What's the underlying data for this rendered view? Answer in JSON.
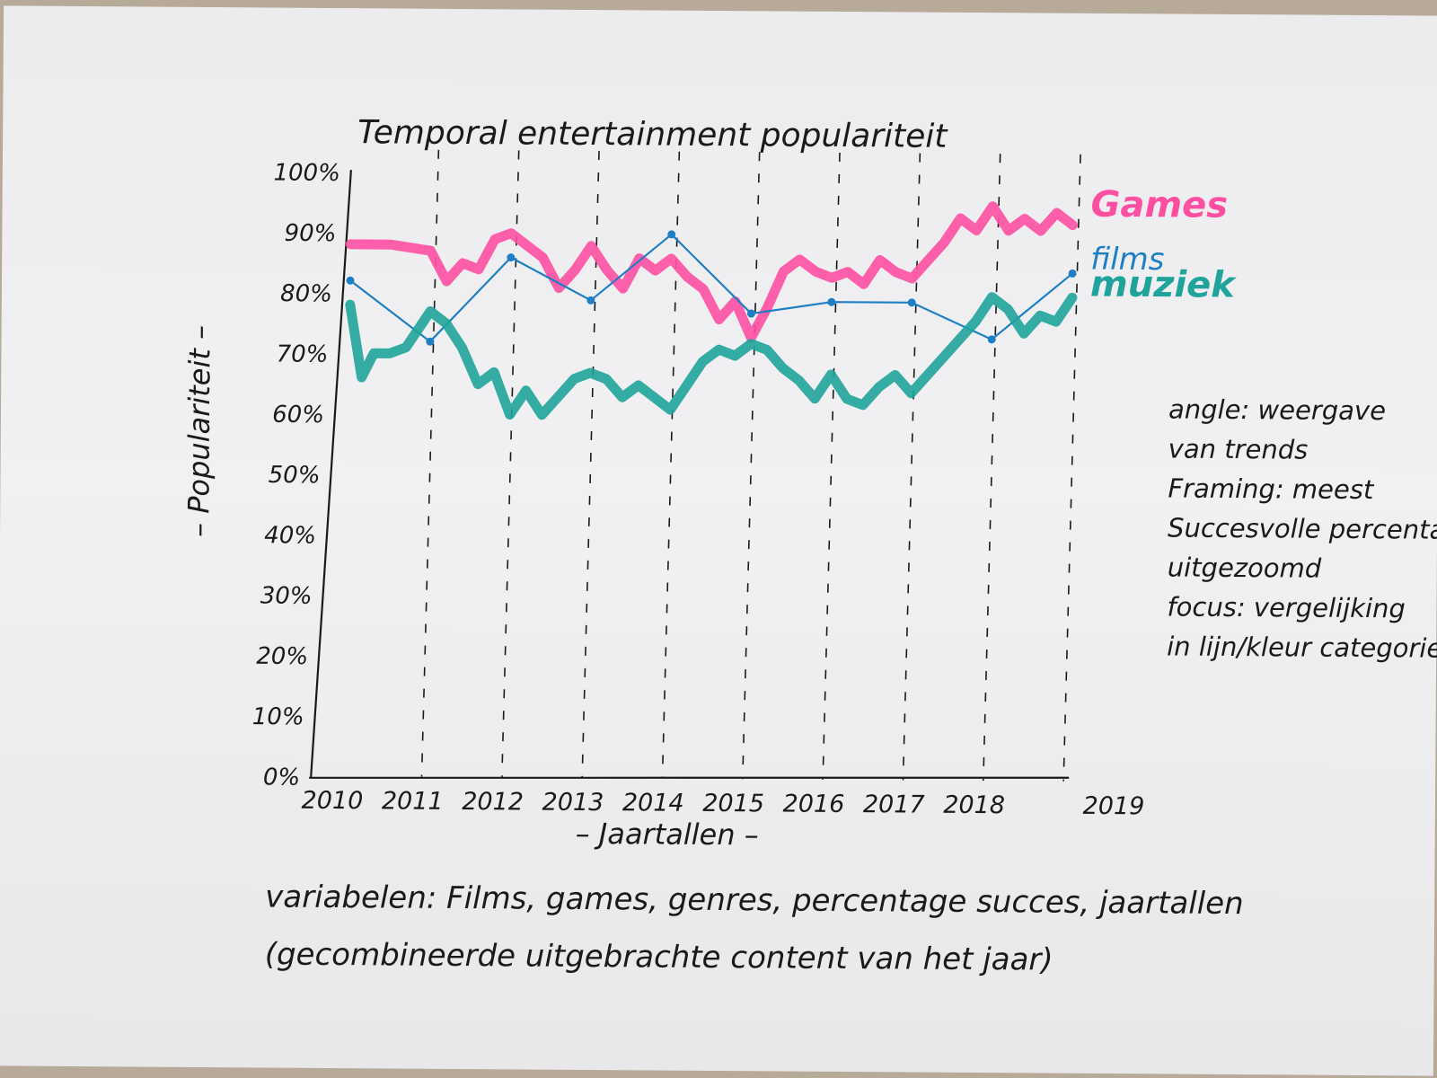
{
  "chart_data": {
    "type": "line",
    "title": "Temporal entertainment populariteit",
    "xlabel": "– Jaartallen –",
    "ylabel": "– Populariteit –",
    "x": [
      "2010",
      "2011",
      "2012",
      "2013",
      "2014",
      "2015",
      "2016",
      "2017",
      "2018",
      "2019"
    ],
    "x_tick_labels": [
      "2010",
      "2011",
      "2012",
      "2013",
      "2014",
      "2015",
      "2016",
      "2017",
      "2018",
      "2019"
    ],
    "y_tick_labels": [
      "0%",
      "10%",
      "20%",
      "30%",
      "40%",
      "50%",
      "60%",
      "70%",
      "80%",
      "90%",
      "100%"
    ],
    "ylim": [
      0,
      100
    ],
    "grid": "vertical dashed lines at each year",
    "legend": "right, labels next to line ends",
    "series": [
      {
        "name": "Games",
        "color": "#ff4fa3",
        "style": "thick marker",
        "x": [
          2010.0,
          2010.5,
          2011.0,
          2011.2,
          2011.4,
          2011.6,
          2011.8,
          2012.0,
          2012.2,
          2012.4,
          2012.6,
          2012.8,
          2013.0,
          2013.2,
          2013.4,
          2013.6,
          2013.8,
          2014.0,
          2014.2,
          2014.4,
          2014.6,
          2014.8,
          2015.0,
          2015.2,
          2015.4,
          2015.6,
          2015.8,
          2016.0,
          2016.2,
          2016.4,
          2016.6,
          2016.8,
          2017.0,
          2017.2,
          2017.4,
          2017.6,
          2017.8,
          2018.0,
          2018.2,
          2018.4,
          2018.6,
          2018.8,
          2019.0
        ],
        "values": [
          88,
          88,
          87,
          82,
          85,
          84,
          89,
          90,
          88,
          86,
          81,
          84,
          88,
          84,
          81,
          86,
          84,
          86,
          83,
          81,
          76,
          79,
          73,
          78,
          84,
          86,
          84,
          83,
          84,
          82,
          86,
          84,
          83,
          86,
          89,
          93,
          91,
          95,
          91,
          93,
          91,
          94,
          92
        ]
      },
      {
        "name": "films",
        "color": "#1e7fc4",
        "style": "thin line with dots",
        "x": [
          2010,
          2011,
          2012,
          2013,
          2014,
          2015,
          2016,
          2017,
          2018,
          2019
        ],
        "values": [
          82,
          72,
          86,
          79,
          90,
          77,
          79,
          79,
          73,
          84
        ]
      },
      {
        "name": "muziek",
        "color": "#1fa39a",
        "style": "thick marker",
        "x": [
          2010.0,
          2010.15,
          2010.3,
          2010.5,
          2010.7,
          2011.0,
          2011.2,
          2011.4,
          2011.6,
          2011.8,
          2012.0,
          2012.2,
          2012.4,
          2012.6,
          2012.8,
          2013.0,
          2013.2,
          2013.4,
          2013.6,
          2013.8,
          2014.0,
          2014.2,
          2014.4,
          2014.6,
          2014.8,
          2015.0,
          2015.2,
          2015.4,
          2015.6,
          2015.8,
          2016.0,
          2016.2,
          2016.4,
          2016.6,
          2016.8,
          2017.0,
          2017.2,
          2017.4,
          2017.6,
          2017.8,
          2018.0,
          2018.2,
          2018.4,
          2018.6,
          2018.8,
          2019.0
        ],
        "values": [
          78,
          66,
          70,
          70,
          71,
          77,
          75,
          71,
          65,
          67,
          60,
          64,
          60,
          63,
          66,
          67,
          66,
          63,
          65,
          63,
          61,
          65,
          69,
          71,
          70,
          72,
          71,
          68,
          66,
          63,
          67,
          63,
          62,
          65,
          67,
          64,
          67,
          70,
          73,
          76,
          80,
          78,
          74,
          77,
          76,
          80
        ]
      }
    ]
  },
  "notes": {
    "right": [
      "angle: weergave",
      "van trends",
      "Framing: meest",
      "Succesvolle percentages",
      "uitgezoomd",
      "focus: vergelijking",
      "in lijn/kleur categorie"
    ],
    "bottom": [
      "variabelen: Films, games, genres, percentage succes, jaartallen",
      "(gecombineerde uitgebrachte content van het jaar)"
    ]
  },
  "colors": {
    "paper": "#efeff1",
    "background": "#b7aa98",
    "ink": "#1a1a1a",
    "games": "#ff4fa3",
    "films": "#1e7fc4",
    "muziek": "#1fa39a"
  }
}
